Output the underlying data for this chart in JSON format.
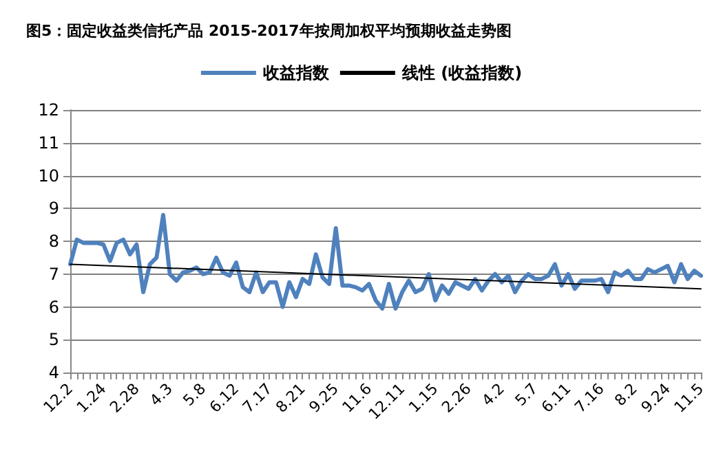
{
  "chart_data": {
    "type": "line",
    "title": "图5：固定收益类信托产品 2015-2017年按周加权平均预期收益走势图",
    "categories": [
      "12.2",
      null,
      null,
      null,
      null,
      "1.24",
      null,
      null,
      null,
      null,
      "2.28",
      null,
      null,
      null,
      null,
      "4.3",
      null,
      null,
      null,
      null,
      "5.8",
      null,
      null,
      null,
      null,
      "6.12",
      null,
      null,
      null,
      null,
      "7.17",
      null,
      null,
      null,
      null,
      "8.21",
      null,
      null,
      null,
      null,
      "9.25",
      null,
      null,
      null,
      null,
      "11.6",
      null,
      null,
      null,
      null,
      "12.11",
      null,
      null,
      null,
      null,
      "1.15",
      null,
      null,
      null,
      null,
      "2.26",
      null,
      null,
      null,
      null,
      "4.2",
      null,
      null,
      null,
      null,
      "5.7",
      null,
      null,
      null,
      null,
      "6.11",
      null,
      null,
      null,
      null,
      "7.16",
      null,
      null,
      null,
      null,
      "8.2",
      null,
      null,
      null,
      null,
      "9.24",
      null,
      null,
      null,
      null,
      "11.5"
    ],
    "series": [
      {
        "name": "收益指数",
        "color": "#4f81bd",
        "values": [
          7.3,
          8.05,
          7.95,
          7.95,
          7.95,
          7.9,
          7.4,
          7.95,
          8.05,
          7.6,
          7.9,
          6.45,
          7.3,
          7.5,
          8.8,
          7.0,
          6.8,
          7.05,
          7.1,
          7.2,
          7.0,
          7.05,
          7.5,
          7.05,
          6.95,
          7.35,
          6.6,
          6.45,
          7.05,
          6.45,
          6.75,
          6.75,
          6.0,
          6.75,
          6.3,
          6.85,
          6.7,
          7.6,
          6.9,
          6.7,
          8.4,
          6.65,
          6.65,
          6.6,
          6.5,
          6.7,
          6.2,
          5.95,
          6.7,
          5.95,
          6.45,
          6.8,
          6.45,
          6.55,
          7.0,
          6.2,
          6.65,
          6.4,
          6.75,
          6.65,
          6.55,
          6.85,
          6.5,
          6.8,
          7.0,
          6.75,
          6.95,
          6.45,
          6.8,
          7.0,
          6.85,
          6.85,
          6.95,
          7.3,
          6.65,
          7.0,
          6.55,
          6.8,
          6.8,
          6.8,
          6.85,
          6.45,
          7.05,
          6.95,
          7.1,
          6.85,
          6.85,
          7.15,
          7.05,
          7.15,
          7.25,
          6.75,
          7.3,
          6.85,
          7.1,
          6.95
        ]
      },
      {
        "name": "线性 (收益指数)",
        "color": "#000000",
        "values": [
          7.3,
          null,
          null,
          null,
          null,
          null,
          null,
          null,
          null,
          null,
          null,
          null,
          null,
          null,
          null,
          null,
          null,
          null,
          null,
          null,
          null,
          null,
          null,
          null,
          null,
          null,
          null,
          null,
          null,
          null,
          null,
          null,
          null,
          null,
          null,
          null,
          null,
          null,
          null,
          null,
          null,
          null,
          null,
          null,
          null,
          null,
          null,
          null,
          null,
          null,
          null,
          null,
          null,
          null,
          null,
          null,
          null,
          null,
          null,
          null,
          null,
          null,
          null,
          null,
          null,
          null,
          null,
          null,
          null,
          null,
          null,
          null,
          null,
          null,
          null,
          null,
          null,
          null,
          null,
          null,
          null,
          null,
          null,
          null,
          null,
          null,
          null,
          null,
          null,
          null,
          null,
          null,
          null,
          null,
          null,
          6.55
        ]
      }
    ],
    "ylim": [
      4,
      12
    ],
    "yticks": [
      4,
      5,
      6,
      7,
      8,
      9,
      10,
      11,
      12
    ],
    "grid": "y",
    "legend": "top",
    "marker": "none",
    "line_style": "solid"
  }
}
